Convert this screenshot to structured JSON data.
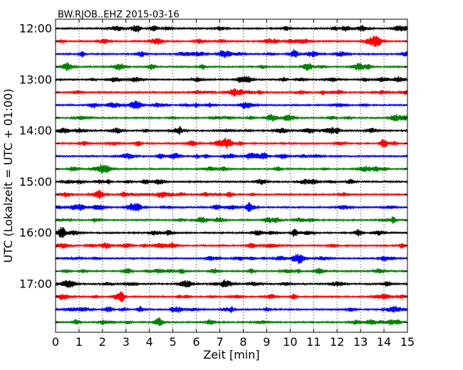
{
  "chart_data": {
    "type": "line",
    "title": "BW.RJOB..EHZ 2015-03-16",
    "xlabel": "Zeit  [min]",
    "ylabel": "UTC (Lokalzeit = UTC + 01:00)",
    "xlim": [
      0,
      15
    ],
    "x_ticks": [
      "0",
      "1",
      "2",
      "3",
      "4",
      "5",
      "6",
      "7",
      "8",
      "9",
      "10",
      "11",
      "12",
      "13",
      "14",
      "15"
    ],
    "y_tick_labels": [
      "12:00",
      "13:00",
      "14:00",
      "15:00",
      "16:00",
      "17:00"
    ],
    "grid_x": true,
    "trace_colors": [
      "#000000",
      "#ff0000",
      "#0000ff",
      "#008000"
    ],
    "traces": [
      {
        "start": "12:00",
        "color": "#000000"
      },
      {
        "start": "12:15",
        "color": "#ff0000"
      },
      {
        "start": "12:30",
        "color": "#0000ff"
      },
      {
        "start": "12:45",
        "color": "#008000"
      },
      {
        "start": "13:00",
        "color": "#000000"
      },
      {
        "start": "13:15",
        "color": "#ff0000"
      },
      {
        "start": "13:30",
        "color": "#0000ff"
      },
      {
        "start": "13:45",
        "color": "#008000"
      },
      {
        "start": "14:00",
        "color": "#000000"
      },
      {
        "start": "14:15",
        "color": "#ff0000"
      },
      {
        "start": "14:30",
        "color": "#0000ff"
      },
      {
        "start": "14:45",
        "color": "#008000"
      },
      {
        "start": "15:00",
        "color": "#000000"
      },
      {
        "start": "15:15",
        "color": "#ff0000"
      },
      {
        "start": "15:30",
        "color": "#0000ff"
      },
      {
        "start": "15:45",
        "color": "#008000"
      },
      {
        "start": "16:00",
        "color": "#000000"
      },
      {
        "start": "16:15",
        "color": "#ff0000"
      },
      {
        "start": "16:30",
        "color": "#0000ff"
      },
      {
        "start": "16:45",
        "color": "#008000"
      },
      {
        "start": "17:00",
        "color": "#000000"
      },
      {
        "start": "17:15",
        "color": "#ff0000"
      },
      {
        "start": "17:30",
        "color": "#0000ff"
      },
      {
        "start": "17:45",
        "color": "#008000"
      }
    ]
  }
}
